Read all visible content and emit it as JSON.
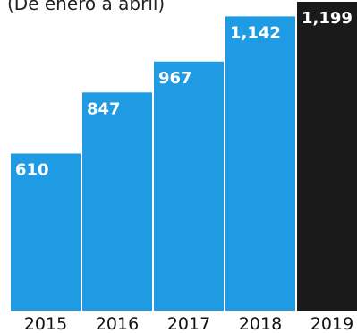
{
  "header": {
    "subtitle": "(De enero a abril)"
  },
  "colors": {
    "bar": "#1f9be3",
    "highlight": "#1a1a1a",
    "label": "#ffffff",
    "tick": "#111111"
  },
  "chart_data": {
    "type": "bar",
    "categories": [
      "2015",
      "2016",
      "2017",
      "2018",
      "2019"
    ],
    "values": [
      610,
      847,
      967,
      1142,
      1199
    ],
    "value_labels": [
      "610",
      "847",
      "967",
      "1,142",
      "1,199"
    ],
    "highlight_category": "2019",
    "xlabel": "",
    "ylabel": "",
    "ylim": [
      0,
      1199
    ],
    "grid": false,
    "legend": "none"
  }
}
